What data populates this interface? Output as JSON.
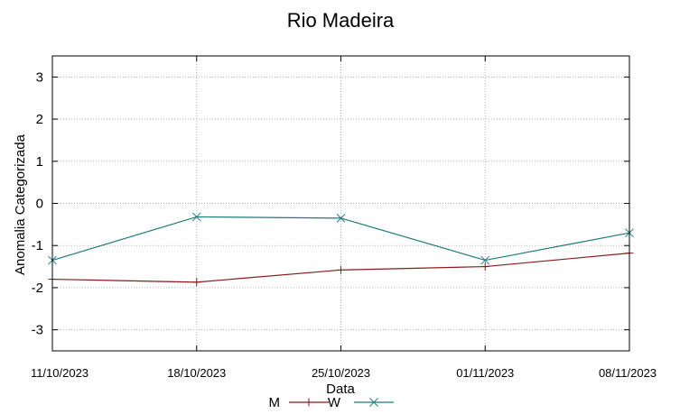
{
  "chart_data": {
    "type": "line",
    "title": "Rio Madeira",
    "xlabel": "Data",
    "ylabel": "Anomalia Categorizada",
    "categories": [
      "11/10/2023",
      "18/10/2023",
      "25/10/2023",
      "01/11/2023",
      "08/11/2023"
    ],
    "ylim": [
      -3.5,
      3.5
    ],
    "yticks": [
      -3,
      -2,
      -1,
      0,
      1,
      2,
      3
    ],
    "grid": true,
    "legend": "bottom-center",
    "series": [
      {
        "name": "M",
        "values": [
          -1.8,
          -1.87,
          -1.58,
          -1.5,
          -1.18
        ],
        "color": "#8b1a1a",
        "marker": "plus"
      },
      {
        "name": "W",
        "values": [
          -1.35,
          -0.32,
          -0.35,
          -1.35,
          -0.7
        ],
        "color": "#1e7b7b",
        "marker": "cross"
      }
    ]
  }
}
